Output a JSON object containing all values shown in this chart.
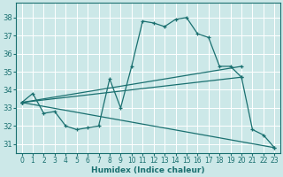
{
  "xlabel": "Humidex (Indice chaleur)",
  "bg_color": "#cce8e8",
  "line_color": "#1a7070",
  "grid_color": "#ffffff",
  "xlim": [
    -0.5,
    23.5
  ],
  "ylim": [
    30.5,
    38.8
  ],
  "yticks": [
    31,
    32,
    33,
    34,
    35,
    36,
    37,
    38
  ],
  "xticks": [
    0,
    1,
    2,
    3,
    4,
    5,
    6,
    7,
    8,
    9,
    10,
    11,
    12,
    13,
    14,
    15,
    16,
    17,
    18,
    19,
    20,
    21,
    22,
    23
  ],
  "series_main": [
    [
      0,
      33.3
    ],
    [
      1,
      33.8
    ],
    [
      2,
      32.7
    ],
    [
      3,
      32.8
    ],
    [
      4,
      32.0
    ],
    [
      5,
      31.8
    ],
    [
      6,
      31.9
    ],
    [
      7,
      32.0
    ],
    [
      8,
      34.6
    ],
    [
      9,
      33.0
    ],
    [
      10,
      35.3
    ],
    [
      11,
      37.8
    ],
    [
      12,
      37.7
    ],
    [
      13,
      37.5
    ],
    [
      14,
      37.9
    ],
    [
      15,
      38.0
    ],
    [
      16,
      37.1
    ],
    [
      17,
      36.9
    ],
    [
      18,
      35.3
    ],
    [
      19,
      35.3
    ],
    [
      20,
      34.7
    ],
    [
      21,
      31.8
    ],
    [
      22,
      31.5
    ],
    [
      23,
      30.8
    ]
  ],
  "line_upper": [
    [
      0,
      33.3
    ],
    [
      20,
      35.3
    ]
  ],
  "line_lower": [
    [
      0,
      33.3
    ],
    [
      23,
      30.8
    ]
  ],
  "line_mid": [
    [
      0,
      33.3
    ],
    [
      20,
      34.7
    ]
  ]
}
